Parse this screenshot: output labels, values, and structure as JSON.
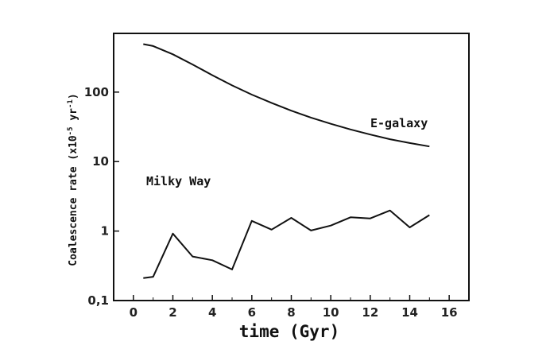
{
  "chart_data": {
    "type": "line",
    "xlabel": "time (Gyr)",
    "ylabel": "Coalescence rate (x10",
    "ylabel_exp1": "-5",
    "ylabel_mid": " yr",
    "ylabel_exp2": "-1",
    "ylabel_end": ")",
    "xlim": [
      -1,
      17
    ],
    "ylim": [
      0.1,
      700
    ],
    "yscale": "log",
    "xticks": [
      "0",
      "2",
      "4",
      "6",
      "8",
      "10",
      "12",
      "14",
      "16"
    ],
    "xtick_values": [
      0,
      2,
      4,
      6,
      8,
      10,
      12,
      14,
      16
    ],
    "yticks": [
      "0,1",
      "1",
      "10",
      "100"
    ],
    "ytick_values": [
      0.1,
      1,
      10,
      100
    ],
    "grid": false,
    "series": [
      {
        "name": "E-galaxy",
        "x": [
          0.5,
          1,
          2,
          3,
          4,
          5,
          6,
          7,
          8,
          9,
          10,
          11,
          12,
          13,
          14,
          15
        ],
        "y": [
          490,
          460,
          350,
          250,
          175,
          125,
          92,
          70,
          54,
          43,
          35,
          29,
          24.5,
          21,
          18.5,
          16.5
        ]
      },
      {
        "name": "Milky Way",
        "x": [
          0.5,
          1,
          2,
          3,
          4,
          5,
          6,
          7,
          8,
          9,
          10,
          11,
          12,
          13,
          14,
          15
        ],
        "y": [
          0.21,
          0.22,
          0.92,
          0.43,
          0.38,
          0.28,
          1.4,
          1.05,
          1.55,
          1.02,
          1.2,
          1.58,
          1.52,
          1.98,
          1.13,
          1.7
        ]
      }
    ]
  }
}
